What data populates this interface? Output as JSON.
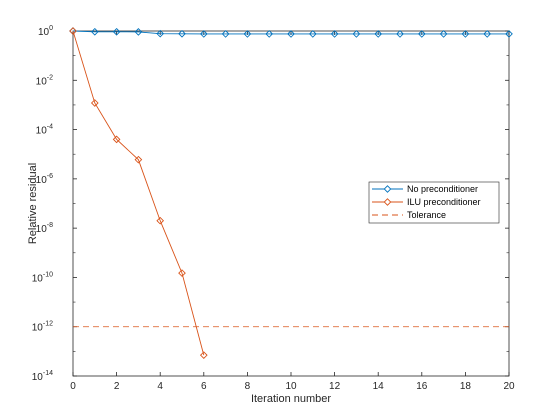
{
  "chart_data": {
    "type": "line",
    "xlabel": "Iteration number",
    "ylabel": "Relative residual",
    "xlim": [
      0,
      20
    ],
    "ylim": [
      1e-14,
      1
    ],
    "yscale": "log",
    "xticks": [
      "0",
      "2",
      "4",
      "6",
      "8",
      "10",
      "12",
      "14",
      "16",
      "18",
      "20"
    ],
    "yticks": [
      {
        "base": "10",
        "exp": "0"
      },
      {
        "base": "10",
        "exp": "-2"
      },
      {
        "base": "10",
        "exp": "-4"
      },
      {
        "base": "10",
        "exp": "-6"
      },
      {
        "base": "10",
        "exp": "-8"
      },
      {
        "base": "10",
        "exp": "-10"
      },
      {
        "base": "10",
        "exp": "-12"
      },
      {
        "base": "10",
        "exp": "-14"
      }
    ],
    "grid": false,
    "legend_position": "center-right",
    "series": [
      {
        "name": "No preconditioner",
        "color": "#0072BD",
        "marker": "diamond",
        "x": [
          0,
          1,
          2,
          3,
          4,
          5,
          6,
          7,
          8,
          9,
          10,
          11,
          12,
          13,
          14,
          15,
          16,
          17,
          18,
          19,
          20
        ],
        "y": [
          1.0,
          0.93,
          0.93,
          0.92,
          0.78,
          0.77,
          0.76,
          0.76,
          0.76,
          0.76,
          0.76,
          0.76,
          0.76,
          0.76,
          0.76,
          0.76,
          0.76,
          0.76,
          0.76,
          0.76,
          0.76
        ]
      },
      {
        "name": "ILU preconditioner",
        "color": "#D95319",
        "marker": "diamond",
        "x": [
          0,
          1,
          2,
          3,
          4,
          5,
          6
        ],
        "y": [
          1.0,
          0.0012,
          4e-05,
          6e-06,
          2e-08,
          1.5e-10,
          7e-14
        ]
      }
    ],
    "reference_lines": [
      {
        "name": "Tolerance",
        "y": 1e-12,
        "color": "#D95319",
        "style": "dashed"
      }
    ]
  }
}
